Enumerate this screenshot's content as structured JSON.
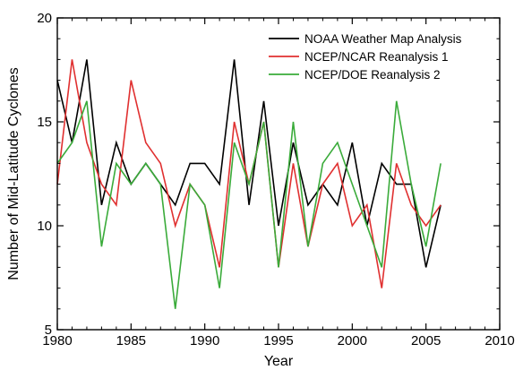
{
  "chart_data": {
    "type": "line",
    "title": "",
    "xlabel": "Year",
    "ylabel": "Number of Mid-Latitude Cyclones",
    "xlim": [
      1980,
      2010
    ],
    "ylim": [
      5,
      20
    ],
    "xticks": [
      "1980",
      "1985",
      "1990",
      "1995",
      "2000",
      "2005",
      "2010"
    ],
    "yticks": [
      "5",
      "10",
      "15",
      "20"
    ],
    "legend_position": "top-right",
    "grid": false,
    "x": [
      1980,
      1981,
      1982,
      1983,
      1984,
      1985,
      1986,
      1987,
      1988,
      1989,
      1990,
      1991,
      1992,
      1993,
      1994,
      1995,
      1996,
      1997,
      1998,
      1999,
      2000,
      2001,
      2002,
      2003,
      2004,
      2005,
      2006
    ],
    "series": [
      {
        "name": "NOAA Weather Map Analysis",
        "color": "#000000",
        "values": [
          17,
          14,
          18,
          11,
          14,
          12,
          13,
          12,
          11,
          13,
          13,
          12,
          18,
          11,
          16,
          10,
          14,
          11,
          12,
          11,
          14,
          10,
          13,
          12,
          12,
          8,
          11
        ]
      },
      {
        "name": "NCEP/NCAR Reanalysis 1",
        "color": "#e03030",
        "values": [
          12,
          18,
          14,
          12,
          11,
          17,
          14,
          13,
          10,
          12,
          11,
          8,
          15,
          12,
          15,
          8,
          13,
          9,
          12,
          13,
          10,
          11,
          7,
          13,
          11,
          10,
          11
        ]
      },
      {
        "name": "NCEP/DOE Reanalysis 2",
        "color": "#3aab3a",
        "values": [
          13,
          14,
          16,
          9,
          13,
          12,
          13,
          12,
          6,
          12,
          11,
          7,
          14,
          12,
          15,
          8,
          15,
          9,
          13,
          14,
          12,
          10,
          8,
          16,
          12,
          9,
          13
        ]
      }
    ]
  }
}
